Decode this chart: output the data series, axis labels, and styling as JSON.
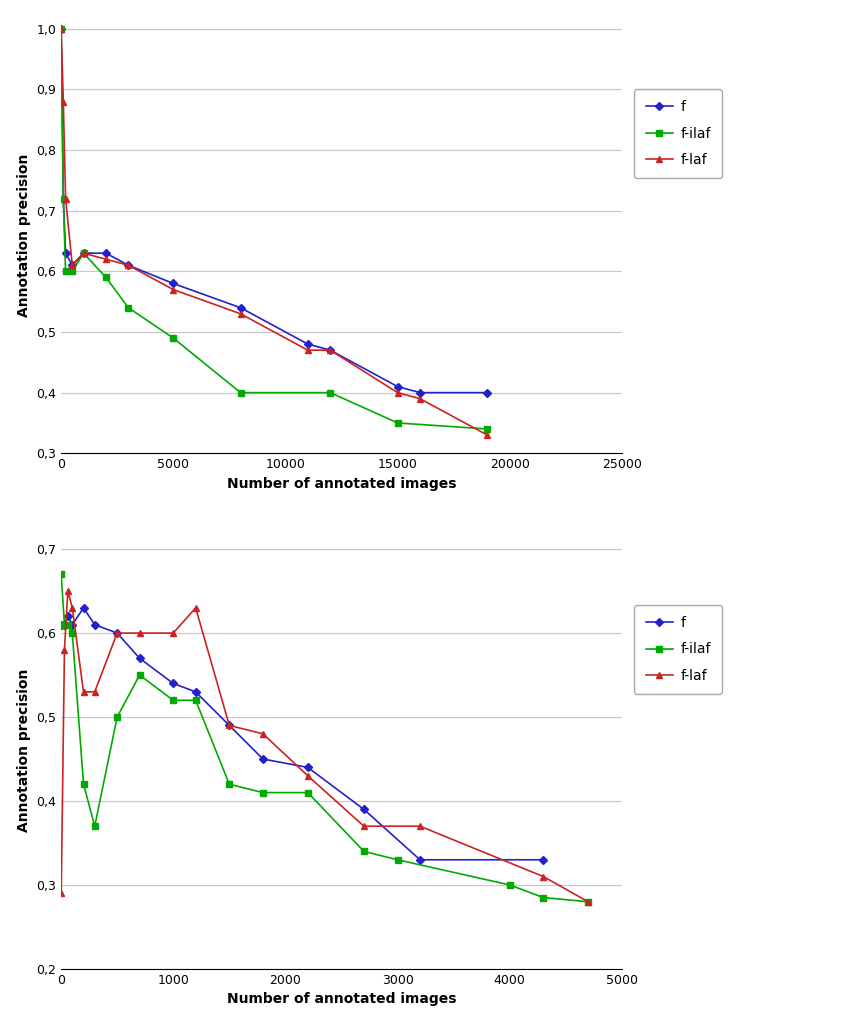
{
  "top_chart": {
    "xlabel": "Number of annotated images",
    "ylabel": "Annotation precision",
    "xlim": [
      0,
      25000
    ],
    "ylim": [
      0.3,
      1.02
    ],
    "yticks": [
      0.3,
      0.4,
      0.5,
      0.6,
      0.7,
      0.8,
      0.9,
      1.0
    ],
    "xticks": [
      0,
      5000,
      10000,
      15000,
      20000,
      25000
    ],
    "series": {
      "f": {
        "x": [
          1,
          100,
          200,
          500,
          1000,
          2000,
          3000,
          5000,
          8000,
          11000,
          12000,
          15000,
          16000,
          19000
        ],
        "y": [
          1.0,
          0.72,
          0.63,
          0.61,
          0.63,
          0.63,
          0.61,
          0.58,
          0.54,
          0.48,
          0.47,
          0.41,
          0.4,
          0.4
        ],
        "color": "#2222cc",
        "marker": "D",
        "markersize": 4
      },
      "f-ilaf": {
        "x": [
          1,
          100,
          200,
          500,
          1000,
          2000,
          3000,
          5000,
          8000,
          12000,
          15000,
          19000
        ],
        "y": [
          1.0,
          0.72,
          0.6,
          0.6,
          0.63,
          0.59,
          0.54,
          0.49,
          0.4,
          0.4,
          0.35,
          0.34
        ],
        "color": "#00aa00",
        "marker": "s",
        "markersize": 4
      },
      "f-laf": {
        "x": [
          1,
          100,
          200,
          500,
          1000,
          2000,
          3000,
          5000,
          8000,
          11000,
          12000,
          15000,
          16000,
          19000
        ],
        "y": [
          1.0,
          0.88,
          0.72,
          0.61,
          0.63,
          0.62,
          0.61,
          0.57,
          0.53,
          0.47,
          0.47,
          0.4,
          0.39,
          0.33
        ],
        "color": "#cc2222",
        "marker": "^",
        "markersize": 4
      }
    }
  },
  "bottom_chart": {
    "xlabel": "Number of annotated images",
    "ylabel": "Annotation precision",
    "xlim": [
      0,
      5000
    ],
    "ylim": [
      0.2,
      0.72
    ],
    "yticks": [
      0.2,
      0.3,
      0.4,
      0.5,
      0.6,
      0.7
    ],
    "xticks": [
      0,
      1000,
      2000,
      3000,
      4000,
      5000
    ],
    "series": {
      "f": {
        "x": [
          1,
          30,
          60,
          100,
          200,
          300,
          500,
          700,
          1000,
          1200,
          1500,
          1800,
          2200,
          2700,
          3200,
          4300
        ],
        "y": [
          0.61,
          0.61,
          0.62,
          0.61,
          0.63,
          0.61,
          0.6,
          0.57,
          0.54,
          0.53,
          0.49,
          0.45,
          0.44,
          0.39,
          0.33,
          0.33
        ],
        "color": "#2222cc",
        "marker": "D",
        "markersize": 4
      },
      "f-ilaf": {
        "x": [
          1,
          30,
          60,
          100,
          200,
          300,
          500,
          700,
          1000,
          1200,
          1500,
          1800,
          2200,
          2700,
          3000,
          4000,
          4300,
          4700
        ],
        "y": [
          0.67,
          0.61,
          0.61,
          0.6,
          0.42,
          0.37,
          0.5,
          0.55,
          0.52,
          0.52,
          0.42,
          0.41,
          0.41,
          0.34,
          0.33,
          0.3,
          0.285,
          0.28
        ],
        "color": "#00aa00",
        "marker": "s",
        "markersize": 4
      },
      "f-laf": {
        "x": [
          1,
          30,
          60,
          100,
          200,
          300,
          500,
          700,
          1000,
          1200,
          1500,
          1800,
          2200,
          2700,
          3200,
          4300,
          4700
        ],
        "y": [
          0.29,
          0.58,
          0.65,
          0.63,
          0.53,
          0.53,
          0.6,
          0.6,
          0.6,
          0.63,
          0.49,
          0.48,
          0.43,
          0.37,
          0.37,
          0.31,
          0.28
        ],
        "color": "#cc2222",
        "marker": "^",
        "markersize": 4
      }
    }
  },
  "background_color": "#ffffff",
  "grid_color": "#c8c8c8"
}
